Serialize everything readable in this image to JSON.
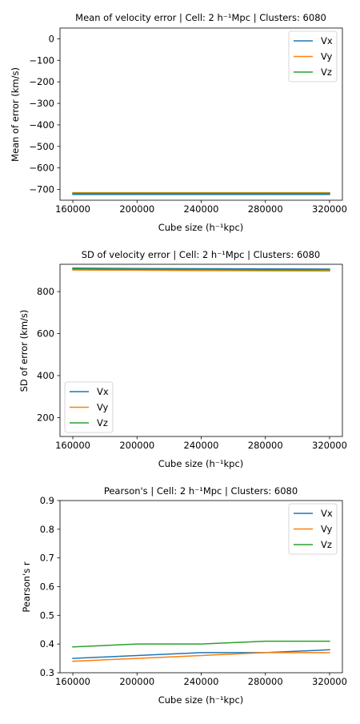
{
  "chart_data": [
    {
      "type": "line",
      "title": "Mean of velocity error | Cell: 2 h⁻¹Mpc | Clusters: 6080",
      "xlabel": "Cube size (h⁻¹kpc)",
      "ylabel": "Mean of error (km/s)",
      "x": [
        160000,
        200000,
        240000,
        280000,
        320000
      ],
      "xticks": [
        160000,
        200000,
        240000,
        280000,
        320000
      ],
      "xtick_labels": [
        "160000",
        "200000",
        "240000",
        "280000",
        "320000"
      ],
      "xlim": [
        152000,
        328000
      ],
      "ylim": [
        -750,
        50
      ],
      "yticks": [
        0,
        -100,
        -200,
        -300,
        -400,
        -500,
        -600,
        -700
      ],
      "ytick_labels": [
        "0",
        "−100",
        "−200",
        "−300",
        "−400",
        "−500",
        "−600",
        "−700"
      ],
      "legend": "top-right",
      "grid": false,
      "series": [
        {
          "name": "Vx",
          "color": "#1f77b4",
          "values": [
            -723,
            -723,
            -723,
            -723,
            -723
          ]
        },
        {
          "name": "Vy",
          "color": "#ff7f0e",
          "values": [
            -715,
            -715,
            -715,
            -715,
            -715
          ]
        },
        {
          "name": "Vz",
          "color": "#2ca02c",
          "values": [
            -718,
            -718,
            -718,
            -718,
            -718
          ]
        }
      ]
    },
    {
      "type": "line",
      "title": "SD of velocity error | Cell: 2 h⁻¹Mpc | Clusters: 6080",
      "xlabel": "Cube size (h⁻¹kpc)",
      "ylabel": "SD of error (km/s)",
      "x": [
        160000,
        200000,
        240000,
        280000,
        320000
      ],
      "xticks": [
        160000,
        200000,
        240000,
        280000,
        320000
      ],
      "xtick_labels": [
        "160000",
        "200000",
        "240000",
        "280000",
        "320000"
      ],
      "xlim": [
        152000,
        328000
      ],
      "ylim": [
        110,
        930
      ],
      "yticks": [
        800,
        600,
        400,
        200
      ],
      "ytick_labels": [
        "800",
        "600",
        "400",
        "200"
      ],
      "legend": "bottom-left",
      "grid": false,
      "series": [
        {
          "name": "Vx",
          "color": "#1f77b4",
          "values": [
            912,
            910,
            909,
            908,
            907
          ]
        },
        {
          "name": "Vy",
          "color": "#ff7f0e",
          "values": [
            903,
            902,
            900,
            899,
            898
          ]
        },
        {
          "name": "Vz",
          "color": "#2ca02c",
          "values": [
            908,
            906,
            905,
            904,
            904
          ]
        }
      ]
    },
    {
      "type": "line",
      "title": "Pearson's | Cell: 2 h⁻¹Mpc | Clusters: 6080",
      "xlabel": "Cube size (h⁻¹kpc)",
      "ylabel": "Pearson's r",
      "x": [
        160000,
        200000,
        240000,
        280000,
        320000
      ],
      "xticks": [
        160000,
        200000,
        240000,
        280000,
        320000
      ],
      "xtick_labels": [
        "160000",
        "200000",
        "240000",
        "280000",
        "320000"
      ],
      "xlim": [
        152000,
        328000
      ],
      "ylim": [
        0.3,
        0.9
      ],
      "yticks": [
        0.3,
        0.4,
        0.5,
        0.6,
        0.7,
        0.8,
        0.9
      ],
      "ytick_labels": [
        "0.3",
        "0.4",
        "0.5",
        "0.6",
        "0.7",
        "0.8",
        "0.9"
      ],
      "legend": "top-right",
      "grid": false,
      "series": [
        {
          "name": "Vx",
          "color": "#1f77b4",
          "values": [
            0.35,
            0.36,
            0.37,
            0.37,
            0.38
          ]
        },
        {
          "name": "Vy",
          "color": "#ff7f0e",
          "values": [
            0.34,
            0.35,
            0.36,
            0.37,
            0.37
          ]
        },
        {
          "name": "Vz",
          "color": "#2ca02c",
          "values": [
            0.39,
            0.4,
            0.4,
            0.41,
            0.41
          ]
        }
      ]
    }
  ]
}
